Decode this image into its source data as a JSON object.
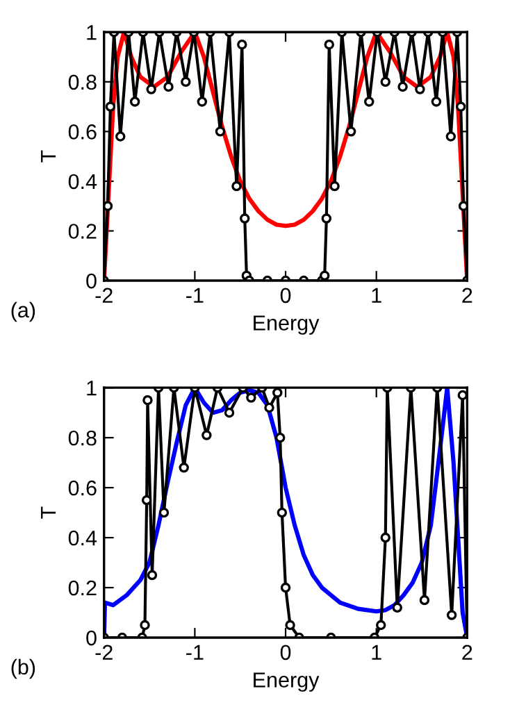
{
  "chart_data": [
    {
      "type": "line",
      "xlabel": "Energy",
      "ylabel": "T",
      "annotations": [
        "(a)"
      ],
      "xlim": [
        -2,
        2
      ],
      "ylim": [
        0,
        1
      ],
      "xticks": [
        -2,
        -1,
        0,
        1,
        2
      ],
      "yticks": [
        0,
        0.2,
        0.4,
        0.6,
        0.8,
        1
      ],
      "grid": false,
      "legend": false,
      "series": [
        {
          "color": "#ff0000",
          "marker": "none",
          "x": [
            -2,
            -1.95,
            -1.9,
            -1.85,
            -1.78,
            -1.7,
            -1.6,
            -1.45,
            -1.3,
            -1.15,
            -1.0,
            -0.9,
            -0.8,
            -0.7,
            -0.6,
            -0.5,
            -0.4,
            -0.3,
            -0.2,
            -0.1,
            0,
            0.1,
            0.2,
            0.3,
            0.4,
            0.5,
            0.6,
            0.7,
            0.8,
            0.9,
            1.0,
            1.15,
            1.3,
            1.45,
            1.6,
            1.7,
            1.78,
            1.85,
            1.9,
            1.95,
            2
          ],
          "values": [
            0,
            0.35,
            0.7,
            0.9,
            1.0,
            0.9,
            0.82,
            0.78,
            0.82,
            0.92,
            1.0,
            0.9,
            0.76,
            0.62,
            0.5,
            0.4,
            0.33,
            0.28,
            0.245,
            0.225,
            0.22,
            0.225,
            0.245,
            0.28,
            0.33,
            0.4,
            0.5,
            0.62,
            0.76,
            0.9,
            1.0,
            0.92,
            0.82,
            0.78,
            0.82,
            0.9,
            1.0,
            0.9,
            0.7,
            0.35,
            0
          ]
        },
        {
          "color": "#000000",
          "marker": "circle",
          "x": [
            -2,
            -1.96,
            -1.93,
            -1.89,
            -1.82,
            -1.73,
            -1.66,
            -1.57,
            -1.48,
            -1.39,
            -1.29,
            -1.2,
            -1.1,
            -1.01,
            -0.92,
            -0.83,
            -0.72,
            -0.62,
            -0.54,
            -0.48,
            -0.45,
            -0.43,
            -0.4,
            -0.2,
            0,
            0.2,
            0.4,
            0.43,
            0.45,
            0.48,
            0.54,
            0.62,
            0.72,
            0.83,
            0.92,
            1.01,
            1.1,
            1.2,
            1.29,
            1.39,
            1.48,
            1.57,
            1.66,
            1.73,
            1.82,
            1.89,
            1.93,
            1.96,
            2
          ],
          "values": [
            0,
            0.3,
            0.7,
            1,
            0.58,
            1,
            0.72,
            1,
            0.77,
            1,
            0.78,
            1,
            0.8,
            1,
            0.72,
            1,
            0.6,
            1,
            0.38,
            0.95,
            0.25,
            0.02,
            0,
            0,
            0,
            0,
            0,
            0.02,
            0.25,
            0.95,
            0.38,
            1,
            0.6,
            1,
            0.72,
            1,
            0.8,
            1,
            0.78,
            1,
            0.77,
            1,
            0.72,
            1,
            0.58,
            1,
            0.7,
            0.3,
            0
          ]
        }
      ]
    },
    {
      "type": "line",
      "xlabel": "Energy",
      "ylabel": "T",
      "annotations": [
        "(b)"
      ],
      "xlim": [
        -2,
        2
      ],
      "ylim": [
        0,
        1
      ],
      "xticks": [
        -2,
        -1,
        0,
        1,
        2
      ],
      "yticks": [
        0,
        0.2,
        0.4,
        0.6,
        0.8,
        1
      ],
      "grid": false,
      "legend": false,
      "series": [
        {
          "color": "#0000ff",
          "marker": "none",
          "x": [
            -2,
            -1.99,
            -1.9,
            -1.75,
            -1.6,
            -1.5,
            -1.4,
            -1.3,
            -1.2,
            -1.1,
            -1.0,
            -0.9,
            -0.8,
            -0.7,
            -0.6,
            -0.5,
            -0.4,
            -0.3,
            -0.2,
            -0.1,
            0,
            0.1,
            0.2,
            0.3,
            0.4,
            0.6,
            0.8,
            1.0,
            1.1,
            1.2,
            1.3,
            1.4,
            1.5,
            1.6,
            1.7,
            1.78,
            1.85,
            1.9,
            1.95,
            2
          ],
          "values": [
            0,
            0.14,
            0.13,
            0.17,
            0.23,
            0.3,
            0.45,
            0.62,
            0.78,
            0.93,
            1.0,
            0.94,
            0.9,
            0.91,
            0.95,
            0.98,
            0.99,
            0.98,
            0.93,
            0.8,
            0.6,
            0.45,
            0.33,
            0.25,
            0.2,
            0.14,
            0.115,
            0.105,
            0.11,
            0.13,
            0.17,
            0.22,
            0.3,
            0.45,
            0.75,
            1.0,
            0.7,
            0.4,
            0.1,
            0
          ]
        },
        {
          "color": "#000000",
          "marker": "circle",
          "x": [
            -2,
            -1.8,
            -1.58,
            -1.55,
            -1.53,
            -1.52,
            -1.47,
            -1.4,
            -1.34,
            -1.23,
            -1.12,
            -1.0,
            -0.87,
            -0.75,
            -0.62,
            -0.47,
            -0.38,
            -0.26,
            -0.18,
            -0.09,
            -0.06,
            -0.04,
            0,
            0.05,
            0.15,
            0.5,
            0.98,
            1.05,
            1.1,
            1.12,
            1.23,
            1.38,
            1.53,
            1.67,
            1.83,
            1.95,
            2
          ],
          "values": [
            0,
            0,
            0,
            0.05,
            0.55,
            0.95,
            0.25,
            1,
            0.5,
            1,
            0.68,
            1,
            0.81,
            1,
            0.9,
            1,
            0.96,
            1,
            0.92,
            0.98,
            0.8,
            0.5,
            0.2,
            0.05,
            0,
            0,
            0,
            0.05,
            0.4,
            1,
            0.12,
            1,
            0.15,
            1,
            0.09,
            0.97,
            0
          ]
        }
      ]
    }
  ]
}
